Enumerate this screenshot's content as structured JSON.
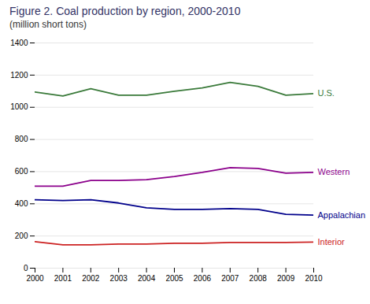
{
  "chart_data": {
    "type": "line",
    "title": "Figure 2. Coal production by region, 2000-2010",
    "subtitle": "(million short tons)",
    "x": [
      2000,
      2001,
      2002,
      2003,
      2004,
      2005,
      2006,
      2007,
      2008,
      2009,
      2010
    ],
    "series": [
      {
        "name": "U.S.",
        "color": "#3a7a3a",
        "values": [
          1095,
          1070,
          1115,
          1075,
          1075,
          1100,
          1120,
          1155,
          1130,
          1075,
          1085
        ]
      },
      {
        "name": "Western",
        "color": "#8b008b",
        "values": [
          510,
          510,
          545,
          545,
          550,
          570,
          595,
          625,
          620,
          590,
          595
        ]
      },
      {
        "name": "Appalachian",
        "color": "#00008b",
        "values": [
          425,
          420,
          425,
          405,
          375,
          365,
          365,
          370,
          365,
          335,
          330
        ]
      },
      {
        "name": "Interior",
        "color": "#cc2222",
        "values": [
          165,
          145,
          145,
          150,
          150,
          155,
          155,
          160,
          160,
          160,
          162
        ]
      }
    ],
    "xlim": [
      2000,
      2010
    ],
    "xticks": [
      2000,
      2001,
      2002,
      2003,
      2004,
      2005,
      2006,
      2007,
      2008,
      2009,
      2010
    ],
    "ylim": [
      0,
      1400
    ],
    "yticks": [
      0,
      200,
      400,
      600,
      800,
      1000,
      1200,
      1400
    ],
    "grid": true
  }
}
